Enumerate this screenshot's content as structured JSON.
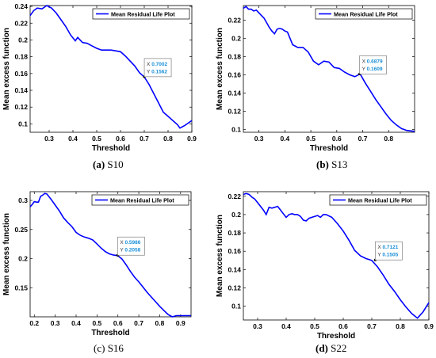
{
  "figure": {
    "captions": [
      {
        "tag": "(a)",
        "name": "S10",
        "tag_bold": true
      },
      {
        "tag": "(b)",
        "name": "S13",
        "tag_bold": true
      },
      {
        "tag": "(c)",
        "name": "S16",
        "tag_bold": false
      },
      {
        "tag": "(d)",
        "name": "S22",
        "tag_bold": true
      }
    ]
  },
  "chart_data": [
    {
      "type": "line",
      "xlabel": "Threshold",
      "ylabel": "Mean excess function",
      "legend": "Mean Residual Life Plot",
      "legend_position": "top-right",
      "line_color": "#0000ff",
      "xlim": [
        0.22,
        0.9
      ],
      "ylim": [
        0.09,
        0.241
      ],
      "xticks": [
        0.3,
        0.4,
        0.5,
        0.6,
        0.7,
        0.8,
        0.9
      ],
      "yticks": [
        0.1,
        0.12,
        0.14,
        0.16,
        0.18,
        0.2,
        0.22,
        0.24
      ],
      "series": [
        {
          "x": [
            0.22,
            0.235,
            0.25,
            0.27,
            0.29,
            0.31,
            0.33,
            0.35,
            0.37,
            0.39,
            0.41,
            0.42,
            0.44,
            0.46,
            0.48,
            0.5,
            0.52,
            0.54,
            0.56,
            0.58,
            0.6,
            0.62,
            0.64,
            0.66,
            0.68,
            0.7,
            0.72,
            0.74,
            0.76,
            0.78,
            0.8,
            0.82,
            0.84,
            0.85,
            0.87,
            0.9
          ],
          "y": [
            0.229,
            0.235,
            0.238,
            0.237,
            0.241,
            0.238,
            0.232,
            0.224,
            0.216,
            0.206,
            0.199,
            0.203,
            0.197,
            0.196,
            0.193,
            0.19,
            0.188,
            0.188,
            0.188,
            0.187,
            0.186,
            0.181,
            0.175,
            0.169,
            0.161,
            0.156,
            0.147,
            0.136,
            0.125,
            0.114,
            0.109,
            0.104,
            0.099,
            0.095,
            0.098,
            0.104
          ]
        }
      ],
      "datatip": {
        "x_label": "X",
        "x_value": "0.7002",
        "y_label": "Y",
        "y_value": "0.1562",
        "x": 0.7002,
        "y": 0.1562
      }
    },
    {
      "type": "line",
      "xlabel": "Threshold",
      "ylabel": "Mean excess function",
      "legend": "Mean Residual Life Plot",
      "legend_position": "top-right",
      "line_color": "#0000ff",
      "xlim": [
        0.24,
        0.9
      ],
      "ylim": [
        0.097,
        0.236
      ],
      "xticks": [
        0.3,
        0.4,
        0.5,
        0.6,
        0.7,
        0.8
      ],
      "yticks": [
        0.1,
        0.12,
        0.14,
        0.16,
        0.18,
        0.2,
        0.22
      ],
      "series": [
        {
          "x": [
            0.24,
            0.25,
            0.26,
            0.27,
            0.28,
            0.29,
            0.3,
            0.31,
            0.32,
            0.33,
            0.34,
            0.35,
            0.36,
            0.37,
            0.38,
            0.39,
            0.4,
            0.41,
            0.43,
            0.45,
            0.47,
            0.49,
            0.51,
            0.53,
            0.55,
            0.57,
            0.59,
            0.61,
            0.63,
            0.65,
            0.67,
            0.69,
            0.71,
            0.73,
            0.75,
            0.77,
            0.79,
            0.81,
            0.83,
            0.85,
            0.87,
            0.9
          ],
          "y": [
            0.233,
            0.235,
            0.232,
            0.232,
            0.23,
            0.231,
            0.228,
            0.225,
            0.222,
            0.217,
            0.212,
            0.208,
            0.205,
            0.21,
            0.211,
            0.21,
            0.208,
            0.207,
            0.193,
            0.19,
            0.19,
            0.185,
            0.175,
            0.171,
            0.175,
            0.174,
            0.168,
            0.167,
            0.163,
            0.16,
            0.158,
            0.161,
            0.151,
            0.142,
            0.133,
            0.125,
            0.117,
            0.11,
            0.105,
            0.101,
            0.099,
            0.098
          ]
        }
      ],
      "datatip": {
        "x_label": "X",
        "x_value": "0.6879",
        "y_label": "Y",
        "y_value": "0.1609",
        "x": 0.6879,
        "y": 0.1609
      }
    },
    {
      "type": "line",
      "xlabel": "Threshold",
      "ylabel": "Mean excess function",
      "legend": "Mean Residual Life Plot",
      "legend_position": "top-right",
      "line_color": "#0000ff",
      "xlim": [
        0.18,
        0.95
      ],
      "ylim": [
        0.1,
        0.315
      ],
      "xticks": [
        0.2,
        0.3,
        0.4,
        0.5,
        0.6,
        0.7,
        0.8,
        0.9
      ],
      "yticks": [
        0.15,
        0.2,
        0.25,
        0.3
      ],
      "series": [
        {
          "x": [
            0.18,
            0.19,
            0.2,
            0.21,
            0.22,
            0.23,
            0.24,
            0.25,
            0.26,
            0.28,
            0.3,
            0.32,
            0.34,
            0.36,
            0.38,
            0.4,
            0.42,
            0.44,
            0.46,
            0.48,
            0.5,
            0.52,
            0.54,
            0.56,
            0.58,
            0.6,
            0.62,
            0.64,
            0.66,
            0.68,
            0.7,
            0.72,
            0.74,
            0.76,
            0.78,
            0.8,
            0.82,
            0.84,
            0.86,
            0.88,
            0.9,
            0.95
          ],
          "y": [
            0.289,
            0.293,
            0.298,
            0.297,
            0.297,
            0.307,
            0.309,
            0.312,
            0.311,
            0.302,
            0.292,
            0.282,
            0.27,
            0.262,
            0.255,
            0.245,
            0.24,
            0.237,
            0.235,
            0.232,
            0.225,
            0.218,
            0.212,
            0.208,
            0.206,
            0.205,
            0.199,
            0.189,
            0.178,
            0.168,
            0.16,
            0.151,
            0.142,
            0.134,
            0.126,
            0.118,
            0.111,
            0.104,
            0.1,
            0.102,
            0.102,
            0.102
          ]
        }
      ],
      "datatip": {
        "x_label": "X",
        "x_value": "0.5986",
        "y_label": "Y",
        "y_value": "0.2058",
        "x": 0.5986,
        "y": 0.2058
      }
    },
    {
      "type": "line",
      "xlabel": "Threshold",
      "ylabel": "Mean excess function",
      "legend": "Mean Residual Life Plot",
      "legend_position": "top-right",
      "line_color": "#0000ff",
      "xlim": [
        0.25,
        0.9
      ],
      "ylim": [
        0.085,
        0.225
      ],
      "xticks": [
        0.3,
        0.4,
        0.5,
        0.6,
        0.7,
        0.8,
        0.9
      ],
      "yticks": [
        0.1,
        0.12,
        0.14,
        0.16,
        0.18,
        0.2,
        0.22
      ],
      "series": [
        {
          "x": [
            0.25,
            0.26,
            0.27,
            0.28,
            0.29,
            0.3,
            0.31,
            0.32,
            0.33,
            0.34,
            0.35,
            0.36,
            0.37,
            0.38,
            0.39,
            0.4,
            0.41,
            0.42,
            0.43,
            0.44,
            0.45,
            0.46,
            0.47,
            0.48,
            0.49,
            0.5,
            0.51,
            0.52,
            0.53,
            0.54,
            0.56,
            0.58,
            0.6,
            0.62,
            0.64,
            0.66,
            0.68,
            0.7,
            0.72,
            0.74,
            0.76,
            0.78,
            0.8,
            0.82,
            0.84,
            0.86,
            0.88,
            0.9
          ],
          "y": [
            0.222,
            0.223,
            0.222,
            0.219,
            0.217,
            0.213,
            0.209,
            0.205,
            0.2,
            0.208,
            0.207,
            0.208,
            0.209,
            0.205,
            0.201,
            0.197,
            0.2,
            0.201,
            0.2,
            0.2,
            0.198,
            0.194,
            0.193,
            0.196,
            0.197,
            0.198,
            0.199,
            0.197,
            0.2,
            0.2,
            0.197,
            0.19,
            0.182,
            0.172,
            0.161,
            0.155,
            0.152,
            0.15,
            0.143,
            0.134,
            0.124,
            0.116,
            0.107,
            0.099,
            0.092,
            0.087,
            0.094,
            0.104
          ]
        }
      ],
      "datatip": {
        "x_label": "X",
        "x_value": "0.7121",
        "y_label": "Y",
        "y_value": "0.1505",
        "x": 0.7121,
        "y": 0.1505
      }
    }
  ]
}
